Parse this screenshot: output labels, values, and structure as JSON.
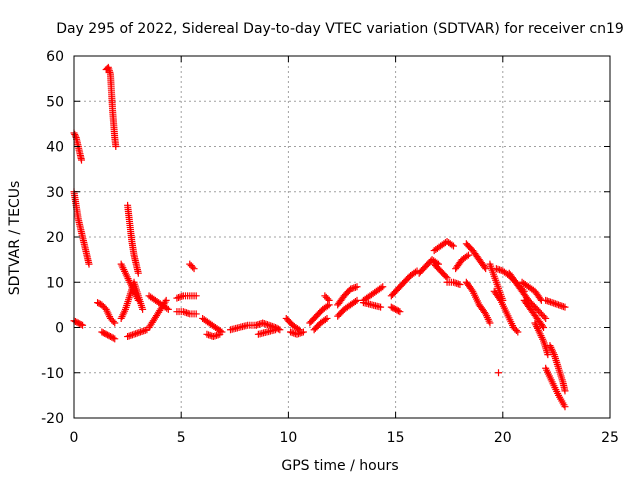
{
  "chart_data": {
    "type": "scatter",
    "title": "Day 295 of 2022, Sidereal Day-to-day VTEC variation (SDTVAR) for receiver cn19",
    "xlabel": "GPS time / hours",
    "ylabel": "SDTVAR / TECUs",
    "xlim": [
      0,
      25
    ],
    "ylim": [
      -20,
      60
    ],
    "xticks": [
      0,
      5,
      10,
      15,
      20,
      25
    ],
    "yticks": [
      -20,
      -10,
      0,
      10,
      20,
      30,
      40,
      50,
      60
    ],
    "grid": true,
    "marker": "+",
    "color": "#ff0000",
    "segments": [
      {
        "x": [
          0.0,
          0.1,
          0.2,
          0.3,
          0.35
        ],
        "y": [
          43,
          42,
          40,
          38,
          37
        ]
      },
      {
        "x": [
          0.0,
          0.1,
          0.2,
          0.3,
          0.4,
          0.5,
          0.6,
          0.7
        ],
        "y": [
          30,
          27,
          24,
          22,
          20,
          18,
          16,
          14
        ]
      },
      {
        "x": [
          0.0,
          0.2,
          0.4
        ],
        "y": [
          1.5,
          1,
          0.5
        ]
      },
      {
        "x": [
          1.5,
          1.6,
          1.7,
          1.75,
          1.8,
          1.85,
          1.9,
          1.95
        ],
        "y": [
          57,
          57.5,
          56,
          52,
          48,
          45,
          42,
          40
        ]
      },
      {
        "x": [
          1.1,
          1.3,
          1.5,
          1.7,
          1.9
        ],
        "y": [
          5.5,
          5,
          4,
          2,
          1
        ]
      },
      {
        "x": [
          1.3,
          1.5,
          1.7,
          1.9
        ],
        "y": [
          -1,
          -1.5,
          -2,
          -2.5
        ]
      },
      {
        "x": [
          2.5,
          2.6,
          2.7,
          2.8,
          2.9,
          3.0
        ],
        "y": [
          27,
          23,
          19,
          16,
          14,
          12
        ]
      },
      {
        "x": [
          2.2,
          2.4,
          2.6,
          2.8,
          3.0
        ],
        "y": [
          14,
          12,
          10,
          8,
          6
        ]
      },
      {
        "x": [
          2.2,
          2.4,
          2.6,
          2.8,
          3.0,
          3.2
        ],
        "y": [
          2,
          4,
          7,
          10,
          7,
          4
        ]
      },
      {
        "x": [
          2.5,
          2.8,
          3.1,
          3.4
        ],
        "y": [
          -2,
          -1.5,
          -1,
          -0.5
        ]
      },
      {
        "x": [
          3.5,
          3.7,
          3.9,
          4.1,
          4.3
        ],
        "y": [
          0,
          1.5,
          3,
          4.5,
          6
        ]
      },
      {
        "x": [
          3.5,
          3.8,
          4.1,
          4.4
        ],
        "y": [
          7,
          6,
          5,
          4
        ]
      },
      {
        "x": [
          4.8,
          5.1,
          5.4,
          5.7
        ],
        "y": [
          6.5,
          7,
          7,
          7
        ]
      },
      {
        "x": [
          4.8,
          5.1,
          5.4,
          5.7
        ],
        "y": [
          3.5,
          3.5,
          3,
          3
        ]
      },
      {
        "x": [
          5.4,
          5.6
        ],
        "y": [
          14,
          13
        ]
      },
      {
        "x": [
          6.0,
          6.3,
          6.6,
          6.9
        ],
        "y": [
          2,
          1,
          0,
          -1
        ]
      },
      {
        "x": [
          6.2,
          6.5,
          6.8
        ],
        "y": [
          -1.5,
          -2,
          -1.5
        ]
      },
      {
        "x": [
          7.3,
          7.7,
          8.1,
          8.5
        ],
        "y": [
          -0.5,
          0,
          0.5,
          0.5
        ]
      },
      {
        "x": [
          8.5,
          8.8,
          9.1,
          9.4,
          9.6
        ],
        "y": [
          0.5,
          1,
          0.5,
          0,
          -0.5
        ]
      },
      {
        "x": [
          8.6,
          9.0,
          9.4
        ],
        "y": [
          -1.5,
          -1,
          -0.5
        ]
      },
      {
        "x": [
          9.9,
          10.2,
          10.5
        ],
        "y": [
          2,
          0.5,
          -0.5
        ]
      },
      {
        "x": [
          10.1,
          10.4,
          10.7
        ],
        "y": [
          -1,
          -1.5,
          -1
        ]
      },
      {
        "x": [
          11.0,
          11.3,
          11.6,
          11.9
        ],
        "y": [
          1,
          2.5,
          4,
          5
        ]
      },
      {
        "x": [
          11.2,
          11.5,
          11.8
        ],
        "y": [
          -0.5,
          1,
          2
        ]
      },
      {
        "x": [
          11.7,
          11.9
        ],
        "y": [
          7,
          6
        ]
      },
      {
        "x": [
          12.3,
          12.6,
          12.9,
          13.2
        ],
        "y": [
          5,
          7,
          8.5,
          9
        ]
      },
      {
        "x": [
          12.3,
          12.6,
          12.9,
          13.2
        ],
        "y": [
          2.5,
          4,
          5,
          6
        ]
      },
      {
        "x": [
          13.5,
          13.8,
          14.1,
          14.4
        ],
        "y": [
          6,
          7,
          8,
          9
        ]
      },
      {
        "x": [
          13.5,
          13.9,
          14.3
        ],
        "y": [
          5.5,
          5,
          4.5
        ]
      },
      {
        "x": [
          14.8,
          15.0,
          15.2
        ],
        "y": [
          4.5,
          4,
          3.5
        ]
      },
      {
        "x": [
          14.8,
          15.1,
          15.4,
          15.7,
          16.0
        ],
        "y": [
          7,
          8.5,
          10,
          11.5,
          12.5
        ]
      },
      {
        "x": [
          16.1,
          16.4,
          16.7,
          17.0
        ],
        "y": [
          12,
          13.5,
          15,
          14
        ]
      },
      {
        "x": [
          16.8,
          17.1,
          17.4,
          17.7
        ],
        "y": [
          17,
          18,
          19,
          18
        ]
      },
      {
        "x": [
          16.8,
          17.1,
          17.4
        ],
        "y": [
          14,
          12.5,
          11
        ]
      },
      {
        "x": [
          17.4,
          17.7,
          18.0
        ],
        "y": [
          10,
          10,
          9.5
        ]
      },
      {
        "x": [
          17.8,
          18.1,
          18.4
        ],
        "y": [
          13,
          15,
          16
        ]
      },
      {
        "x": [
          18.3,
          18.6,
          18.9,
          19.2
        ],
        "y": [
          18.5,
          17,
          15,
          13
        ]
      },
      {
        "x": [
          18.3,
          18.6,
          18.9,
          19.2,
          19.4
        ],
        "y": [
          10,
          8,
          5,
          3,
          1
        ]
      },
      {
        "x": [
          19.4,
          19.7,
          20.0
        ],
        "y": [
          14,
          10,
          6
        ]
      },
      {
        "x": [
          19.6,
          19.9,
          20.2,
          20.5,
          20.7
        ],
        "y": [
          8,
          6,
          3,
          0,
          -1
        ]
      },
      {
        "x": [
          19.7,
          20.0,
          20.3,
          20.6,
          21.0
        ],
        "y": [
          13,
          12.5,
          11.5,
          10,
          8
        ]
      },
      {
        "x": [
          19.8
        ],
        "y": [
          -10
        ]
      },
      {
        "x": [
          20.3,
          20.6,
          20.9,
          21.2,
          21.6,
          22.0
        ],
        "y": [
          12,
          10,
          8,
          6,
          4,
          2
        ]
      },
      {
        "x": [
          20.9,
          21.2,
          21.5,
          21.8
        ],
        "y": [
          10,
          9,
          8,
          6
        ]
      },
      {
        "x": [
          21.0,
          21.3,
          21.6,
          21.9
        ],
        "y": [
          6,
          4,
          2,
          0
        ]
      },
      {
        "x": [
          21.5,
          21.7,
          21.9,
          22.1
        ],
        "y": [
          1,
          -1,
          -3,
          -6
        ]
      },
      {
        "x": [
          22.0,
          22.3,
          22.6,
          22.9
        ],
        "y": [
          6,
          5.5,
          5,
          4.5
        ]
      },
      {
        "x": [
          22.2,
          22.4,
          22.6,
          22.8,
          22.9
        ],
        "y": [
          -4,
          -6,
          -9,
          -12,
          -14
        ]
      },
      {
        "x": [
          22.0,
          22.3,
          22.6,
          22.9
        ],
        "y": [
          -9,
          -12,
          -15,
          -17.5
        ]
      }
    ]
  }
}
